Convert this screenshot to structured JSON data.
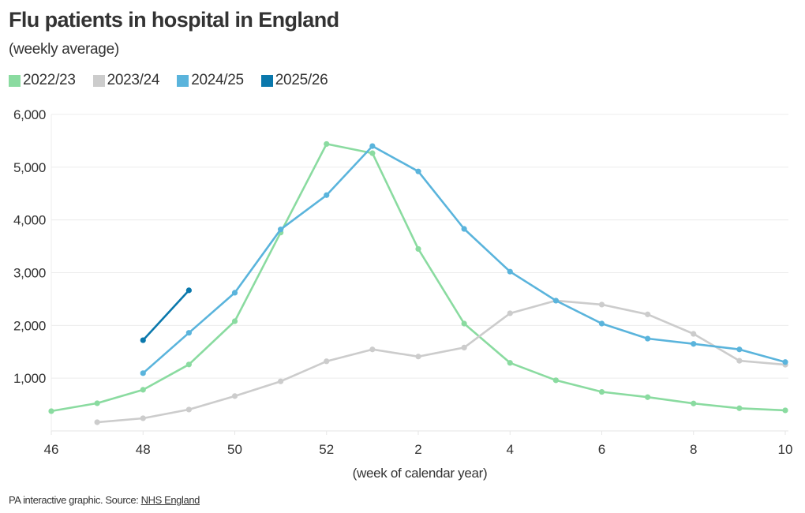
{
  "header": {
    "title": "Flu patients in hospital in England",
    "subtitle": "(weekly average)"
  },
  "footer": {
    "source_prefix": "PA interactive graphic. Source: ",
    "source_link": "NHS England"
  },
  "chart_data": {
    "type": "line",
    "title": "Flu patients in hospital in England",
    "subtitle": "(weekly average)",
    "xlabel": "(week of calendar year)",
    "ylabel": "",
    "x": [
      46,
      47,
      48,
      49,
      50,
      51,
      52,
      1,
      2,
      3,
      4,
      5,
      6,
      7,
      8,
      9,
      10
    ],
    "x_ticks": [
      "46",
      "48",
      "50",
      "52",
      "2",
      "4",
      "6",
      "8",
      "10"
    ],
    "ylim": [
      0,
      6000
    ],
    "y_ticks": [
      1000,
      2000,
      3000,
      4000,
      5000,
      6000
    ],
    "y_tick_labels": [
      "1,000",
      "2,000",
      "3,000",
      "4,000",
      "5,000",
      "6,000"
    ],
    "grid": true,
    "legend_position": "top-left",
    "series": [
      {
        "name": "2022/23",
        "color": "#8adba0",
        "values": [
          375,
          525,
          780,
          1260,
          2080,
          3760,
          5440,
          5265,
          3450,
          2035,
          1290,
          960,
          740,
          640,
          520,
          430,
          390
        ]
      },
      {
        "name": "2023/24",
        "color": "#cccccc",
        "values": [
          null,
          165,
          240,
          405,
          660,
          940,
          1320,
          1545,
          1410,
          1580,
          2230,
          2470,
          2395,
          2210,
          1840,
          1330,
          1255
        ]
      },
      {
        "name": "2024/25",
        "color": "#5ab4dc",
        "values": [
          null,
          null,
          1095,
          1860,
          2620,
          3820,
          4470,
          5400,
          4920,
          3830,
          3020,
          2470,
          2035,
          1750,
          1650,
          1545,
          1305
        ]
      },
      {
        "name": "2025/26",
        "color": "#0a78ac",
        "values": [
          null,
          null,
          1720,
          2665,
          null,
          null,
          null,
          null,
          null,
          null,
          null,
          null,
          null,
          null,
          null,
          null,
          null
        ]
      }
    ]
  }
}
